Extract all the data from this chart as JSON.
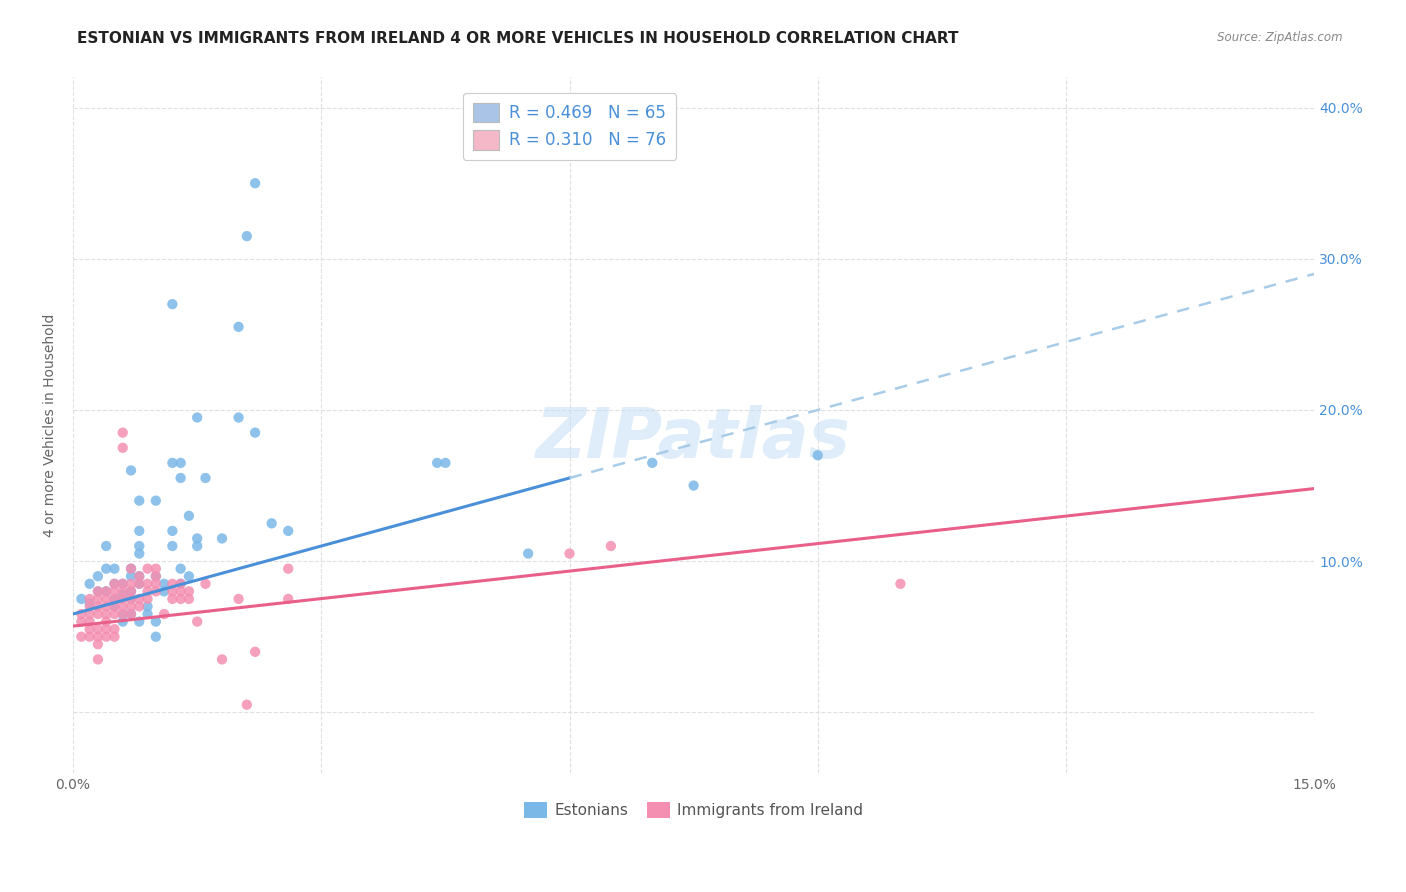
{
  "title": "ESTONIAN VS IMMIGRANTS FROM IRELAND 4 OR MORE VEHICLES IN HOUSEHOLD CORRELATION CHART",
  "source": "Source: ZipAtlas.com",
  "ylabel": "4 or more Vehicles in Household",
  "xlim": [
    0.0,
    0.15
  ],
  "ylim": [
    -0.04,
    0.42
  ],
  "x_tick_positions": [
    0.0,
    0.03,
    0.06,
    0.09,
    0.12,
    0.15
  ],
  "x_tick_labels": [
    "0.0%",
    "",
    "",
    "",
    "",
    "15.0%"
  ],
  "y_tick_positions": [
    0.0,
    0.1,
    0.2,
    0.3,
    0.4
  ],
  "y_tick_labels_right": [
    "",
    "10.0%",
    "20.0%",
    "30.0%",
    "40.0%"
  ],
  "watermark": "ZIPatlas",
  "legend_entries": [
    {
      "label": "R = 0.469   N = 65",
      "color": "#aac4e8"
    },
    {
      "label": "R = 0.310   N = 76",
      "color": "#f5b8c8"
    }
  ],
  "legend_bottom": [
    "Estonians",
    "Immigrants from Ireland"
  ],
  "blue_color": "#7ab8e8",
  "pink_color": "#f48fb1",
  "blue_line_color": "#4a90d9",
  "pink_line_color": "#e8608a",
  "blue_dashed_color": "#a8cce8",
  "grid_color": "#e0e0e0",
  "background_color": "#ffffff",
  "title_fontsize": 11,
  "axis_label_fontsize": 10,
  "tick_fontsize": 10,
  "blue_scatter": [
    [
      0.001,
      0.075
    ],
    [
      0.002,
      0.085
    ],
    [
      0.002,
      0.072
    ],
    [
      0.003,
      0.09
    ],
    [
      0.003,
      0.08
    ],
    [
      0.004,
      0.11
    ],
    [
      0.004,
      0.095
    ],
    [
      0.004,
      0.08
    ],
    [
      0.005,
      0.095
    ],
    [
      0.005,
      0.085
    ],
    [
      0.005,
      0.075
    ],
    [
      0.005,
      0.07
    ],
    [
      0.006,
      0.085
    ],
    [
      0.006,
      0.078
    ],
    [
      0.006,
      0.065
    ],
    [
      0.006,
      0.06
    ],
    [
      0.007,
      0.16
    ],
    [
      0.007,
      0.095
    ],
    [
      0.007,
      0.09
    ],
    [
      0.007,
      0.08
    ],
    [
      0.007,
      0.075
    ],
    [
      0.007,
      0.065
    ],
    [
      0.008,
      0.14
    ],
    [
      0.008,
      0.12
    ],
    [
      0.008,
      0.11
    ],
    [
      0.008,
      0.105
    ],
    [
      0.008,
      0.09
    ],
    [
      0.008,
      0.085
    ],
    [
      0.008,
      0.06
    ],
    [
      0.009,
      0.07
    ],
    [
      0.009,
      0.065
    ],
    [
      0.01,
      0.14
    ],
    [
      0.01,
      0.09
    ],
    [
      0.01,
      0.06
    ],
    [
      0.01,
      0.05
    ],
    [
      0.011,
      0.085
    ],
    [
      0.011,
      0.08
    ],
    [
      0.012,
      0.27
    ],
    [
      0.012,
      0.165
    ],
    [
      0.012,
      0.12
    ],
    [
      0.012,
      0.11
    ],
    [
      0.013,
      0.165
    ],
    [
      0.013,
      0.155
    ],
    [
      0.013,
      0.095
    ],
    [
      0.013,
      0.085
    ],
    [
      0.014,
      0.13
    ],
    [
      0.014,
      0.09
    ],
    [
      0.015,
      0.195
    ],
    [
      0.015,
      0.115
    ],
    [
      0.015,
      0.11
    ],
    [
      0.016,
      0.155
    ],
    [
      0.018,
      0.115
    ],
    [
      0.02,
      0.255
    ],
    [
      0.02,
      0.195
    ],
    [
      0.022,
      0.185
    ],
    [
      0.024,
      0.125
    ],
    [
      0.026,
      0.12
    ],
    [
      0.022,
      0.35
    ],
    [
      0.021,
      0.315
    ],
    [
      0.044,
      0.165
    ],
    [
      0.045,
      0.165
    ],
    [
      0.055,
      0.105
    ],
    [
      0.07,
      0.165
    ],
    [
      0.075,
      0.15
    ],
    [
      0.09,
      0.17
    ]
  ],
  "pink_scatter": [
    [
      0.001,
      0.065
    ],
    [
      0.001,
      0.06
    ],
    [
      0.001,
      0.05
    ],
    [
      0.002,
      0.075
    ],
    [
      0.002,
      0.07
    ],
    [
      0.002,
      0.065
    ],
    [
      0.002,
      0.06
    ],
    [
      0.002,
      0.055
    ],
    [
      0.002,
      0.05
    ],
    [
      0.003,
      0.08
    ],
    [
      0.003,
      0.075
    ],
    [
      0.003,
      0.07
    ],
    [
      0.003,
      0.065
    ],
    [
      0.003,
      0.055
    ],
    [
      0.003,
      0.05
    ],
    [
      0.003,
      0.045
    ],
    [
      0.003,
      0.035
    ],
    [
      0.004,
      0.08
    ],
    [
      0.004,
      0.075
    ],
    [
      0.004,
      0.07
    ],
    [
      0.004,
      0.065
    ],
    [
      0.004,
      0.06
    ],
    [
      0.004,
      0.055
    ],
    [
      0.004,
      0.05
    ],
    [
      0.005,
      0.085
    ],
    [
      0.005,
      0.08
    ],
    [
      0.005,
      0.075
    ],
    [
      0.005,
      0.07
    ],
    [
      0.005,
      0.065
    ],
    [
      0.005,
      0.055
    ],
    [
      0.005,
      0.05
    ],
    [
      0.006,
      0.185
    ],
    [
      0.006,
      0.175
    ],
    [
      0.006,
      0.085
    ],
    [
      0.006,
      0.08
    ],
    [
      0.006,
      0.075
    ],
    [
      0.006,
      0.07
    ],
    [
      0.006,
      0.065
    ],
    [
      0.007,
      0.095
    ],
    [
      0.007,
      0.085
    ],
    [
      0.007,
      0.08
    ],
    [
      0.007,
      0.075
    ],
    [
      0.007,
      0.07
    ],
    [
      0.007,
      0.065
    ],
    [
      0.008,
      0.09
    ],
    [
      0.008,
      0.085
    ],
    [
      0.008,
      0.075
    ],
    [
      0.008,
      0.07
    ],
    [
      0.009,
      0.095
    ],
    [
      0.009,
      0.085
    ],
    [
      0.009,
      0.08
    ],
    [
      0.009,
      0.075
    ],
    [
      0.01,
      0.095
    ],
    [
      0.01,
      0.09
    ],
    [
      0.01,
      0.085
    ],
    [
      0.01,
      0.08
    ],
    [
      0.011,
      0.065
    ],
    [
      0.012,
      0.085
    ],
    [
      0.012,
      0.08
    ],
    [
      0.012,
      0.075
    ],
    [
      0.013,
      0.085
    ],
    [
      0.013,
      0.08
    ],
    [
      0.013,
      0.075
    ],
    [
      0.014,
      0.08
    ],
    [
      0.014,
      0.075
    ],
    [
      0.015,
      0.06
    ],
    [
      0.016,
      0.085
    ],
    [
      0.018,
      0.035
    ],
    [
      0.02,
      0.075
    ],
    [
      0.021,
      0.005
    ],
    [
      0.022,
      0.04
    ],
    [
      0.026,
      0.095
    ],
    [
      0.026,
      0.075
    ],
    [
      0.06,
      0.105
    ],
    [
      0.065,
      0.11
    ],
    [
      0.1,
      0.085
    ]
  ],
  "blue_solid_line": [
    [
      0.0,
      0.065
    ],
    [
      0.06,
      0.155
    ]
  ],
  "blue_dashed_line": [
    [
      0.06,
      0.155
    ],
    [
      0.15,
      0.29
    ]
  ],
  "pink_solid_line": [
    [
      0.0,
      0.057
    ],
    [
      0.15,
      0.148
    ]
  ]
}
